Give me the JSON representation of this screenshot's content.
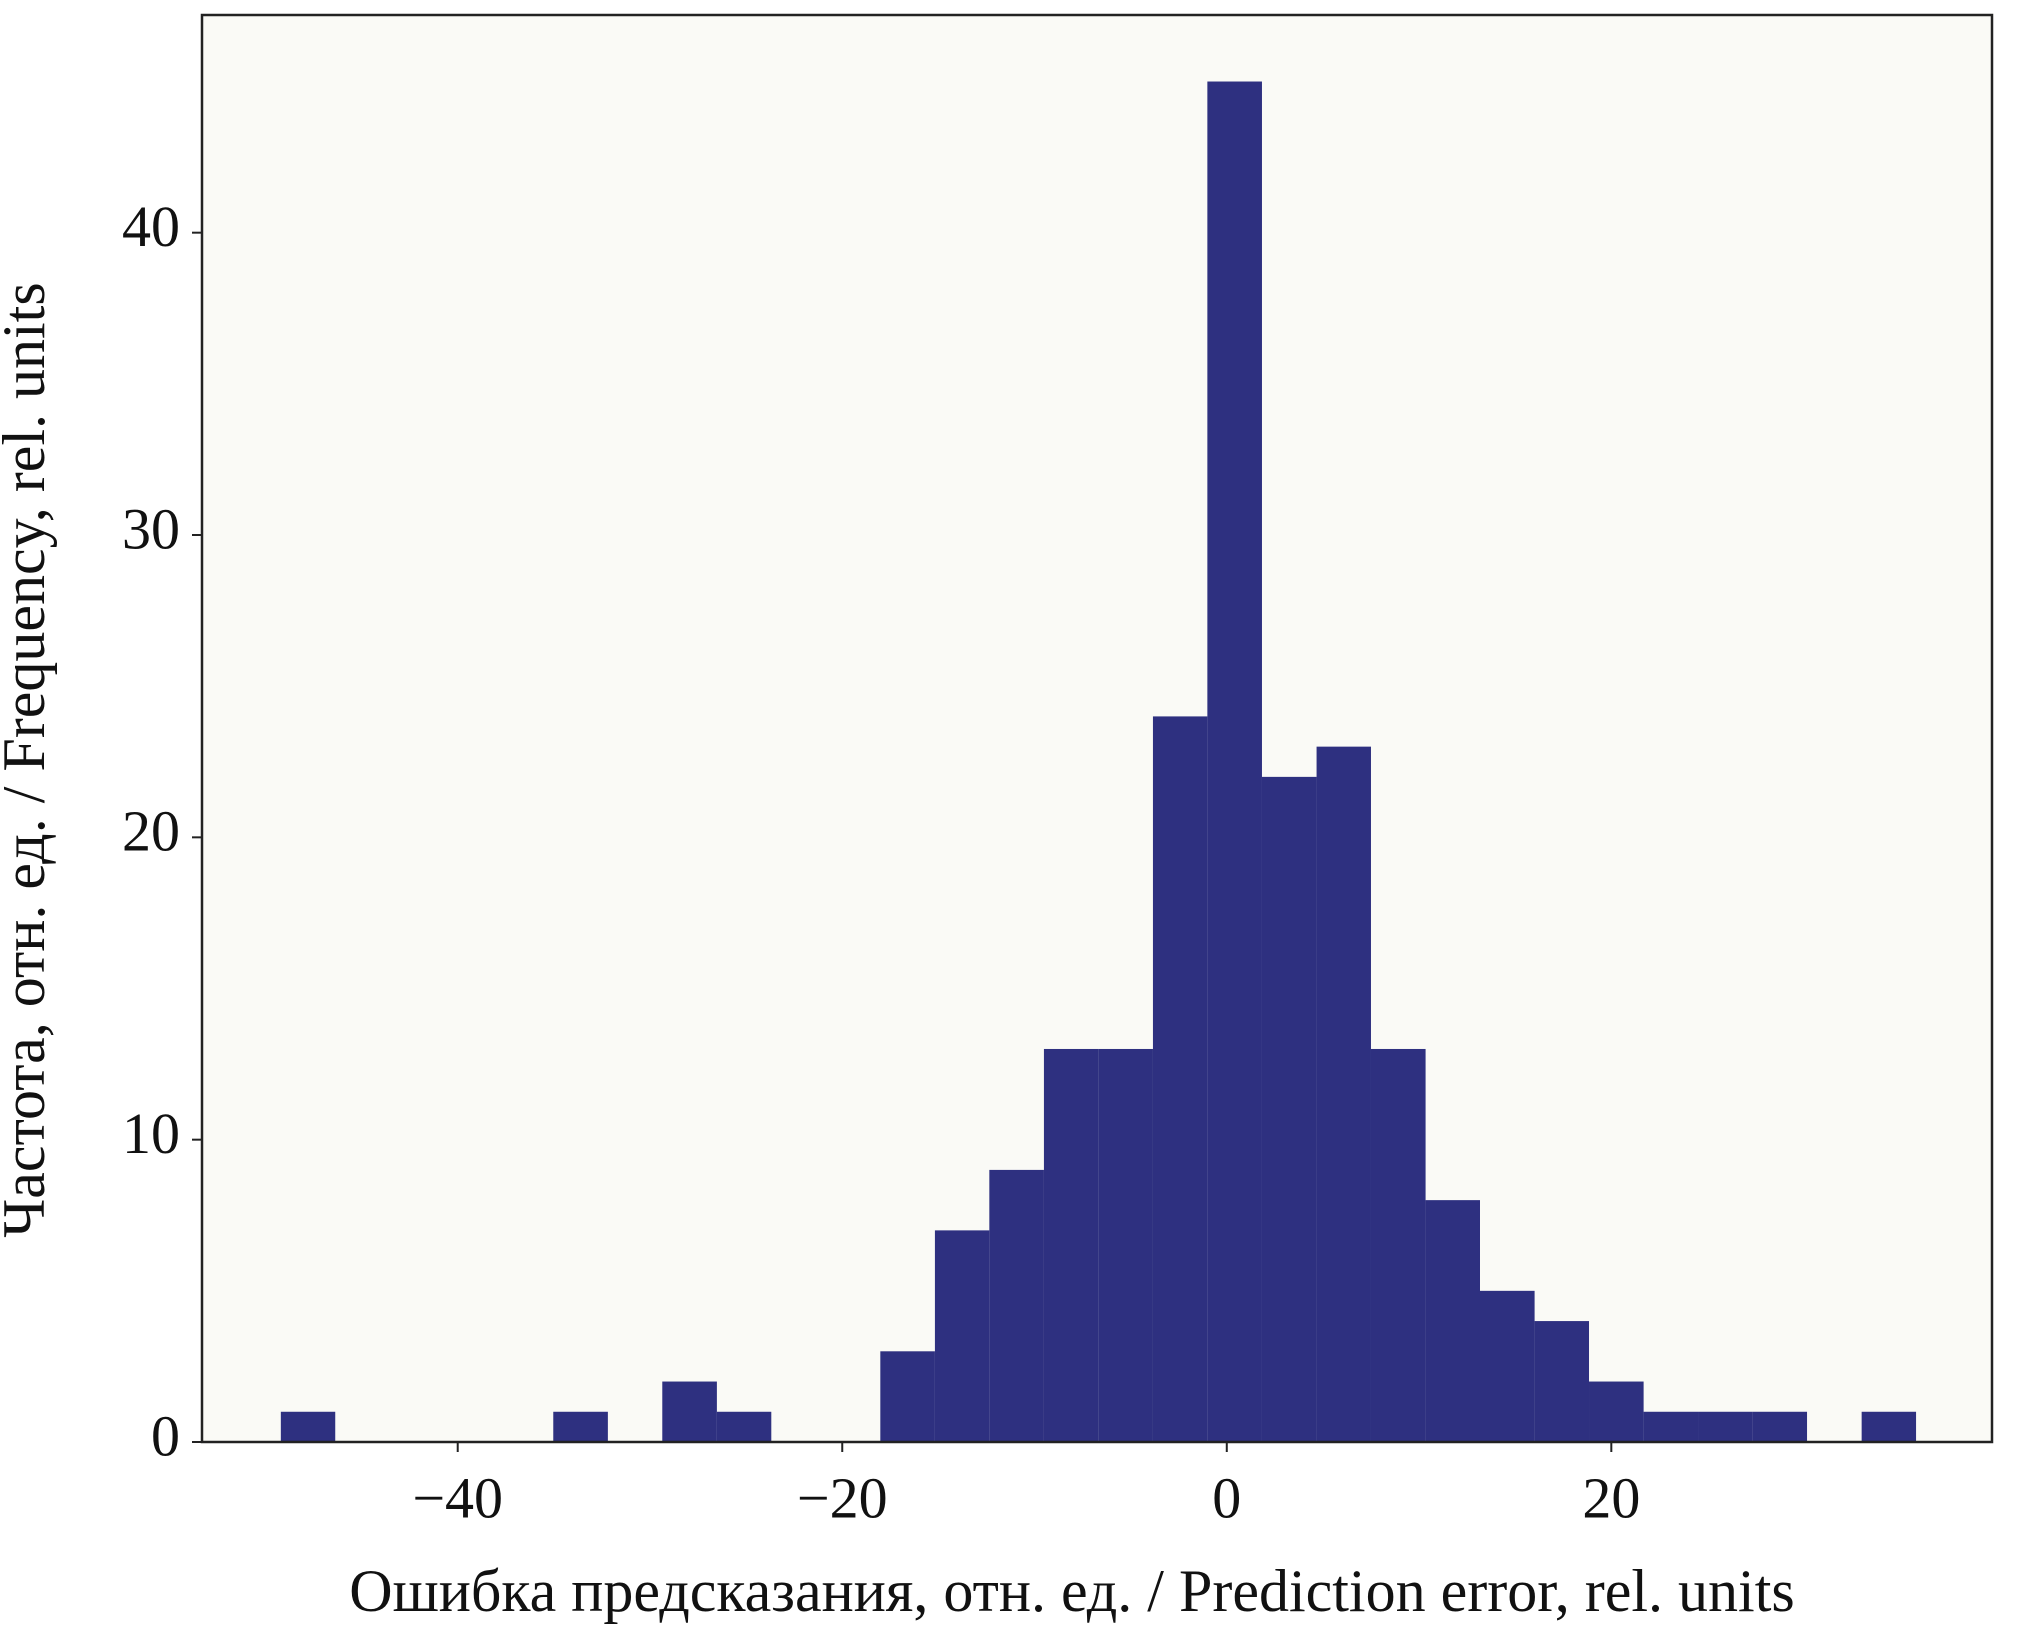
{
  "chart_data": {
    "type": "histogram",
    "x_label": "Ошибка предсказания, отн. ед. / Prediction error, rel. units",
    "y_label": "Частота, отн. ед.  / Frequency, rel. units",
    "bins": [
      -49.2,
      -46.37,
      -43.53,
      -40.7,
      -37.86,
      -35.03,
      -32.19,
      -29.36,
      -26.52,
      -23.69,
      -20.85,
      -18.02,
      -15.18,
      -12.35,
      -9.51,
      -6.68,
      -3.84,
      -1.01,
      1.83,
      4.67,
      7.5,
      10.34,
      13.17,
      16.01,
      18.84,
      21.68,
      24.51,
      27.35,
      30.18,
      33.02,
      35.85
    ],
    "values": [
      1,
      0,
      0,
      0,
      0,
      1,
      0,
      2,
      1,
      0,
      0,
      3,
      7,
      9,
      13,
      13,
      24,
      45,
      22,
      23,
      13,
      8,
      5,
      4,
      2,
      1,
      1,
      1,
      0,
      1
    ],
    "color": "#2e3080",
    "xlim": [
      -53.3,
      39.8
    ],
    "ylim": [
      0,
      47.2
    ],
    "xticks": [
      {
        "value": -40,
        "label": "−40"
      },
      {
        "value": -20,
        "label": "−20"
      },
      0,
      20
    ],
    "yticks": [
      0,
      10,
      20,
      30,
      40
    ],
    "grid": false
  }
}
